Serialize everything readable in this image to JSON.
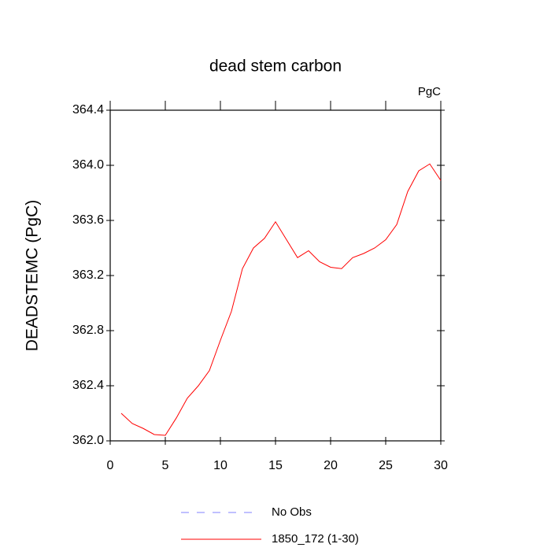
{
  "chart_data": {
    "type": "line",
    "title": "dead stem carbon",
    "units_label": "PgC",
    "y_label": "DEADSTEMC  (PgC)",
    "x": [
      1,
      2,
      3,
      4,
      5,
      6,
      7,
      8,
      9,
      10,
      11,
      12,
      13,
      14,
      15,
      16,
      17,
      18,
      19,
      20,
      21,
      22,
      23,
      24,
      25,
      26,
      27,
      28,
      29,
      30
    ],
    "series": [
      {
        "name": "1850_172 (1-30)",
        "color": "#ff0000",
        "values": [
          362.2,
          362.126,
          362.09,
          362.046,
          362.04,
          362.166,
          362.31,
          362.4,
          362.51,
          362.73,
          362.94,
          363.25,
          363.4,
          363.47,
          363.59,
          363.46,
          363.33,
          363.38,
          363.3,
          363.26,
          363.25,
          363.33,
          363.36,
          363.4,
          363.46,
          363.57,
          363.81,
          363.96,
          364.01,
          363.89
        ]
      }
    ],
    "obs_legend": {
      "name": "No Obs",
      "color": "#8080ff"
    },
    "xlim": [
      0,
      30
    ],
    "xticks": [
      0,
      5,
      10,
      15,
      20,
      25,
      30
    ],
    "ylim": [
      362.0,
      364.4
    ],
    "yticks": [
      {
        "value": 362.0,
        "label": "362.0"
      },
      362.4,
      362.8,
      363.2,
      363.6,
      {
        "value": 364.0,
        "label": "364.0"
      },
      364.4
    ]
  }
}
